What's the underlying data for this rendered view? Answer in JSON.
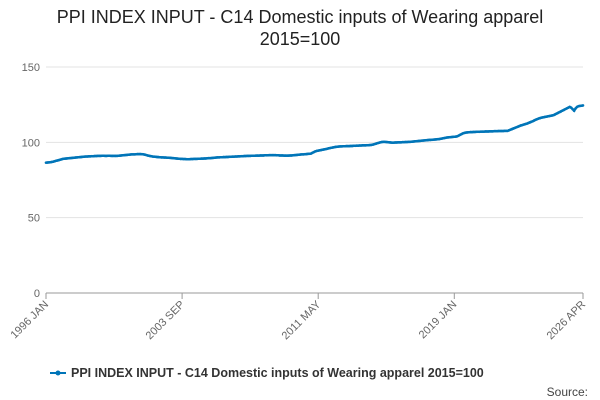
{
  "chart_data": {
    "type": "line",
    "title": "PPI INDEX INPUT - C14 Domestic inputs of Wearing apparel 2015=100",
    "source_label": "Source:",
    "ylim": [
      0,
      150
    ],
    "yticks": [
      0,
      50,
      100,
      150
    ],
    "grid": true,
    "x": [
      "1996 JAN",
      "1996 FEB",
      "1996 MAR",
      "1996 APR",
      "1996 MAY",
      "1996 JUN",
      "1996 JUL",
      "1996 AUG",
      "1996 SEP",
      "1996 OCT",
      "1996 NOV",
      "1996 DEC",
      "1997 JAN",
      "1997 FEB",
      "1997 MAR",
      "1997 APR",
      "1997 MAY",
      "1997 JUN",
      "1997 JUL",
      "1997 AUG",
      "1997 SEP",
      "1997 OCT",
      "1997 NOV",
      "1997 DEC",
      "1998 JAN",
      "1998 FEB",
      "1998 MAR",
      "1998 APR",
      "1998 MAY",
      "1998 JUN",
      "1998 JUL",
      "1998 AUG",
      "1998 SEP",
      "1998 OCT",
      "1998 NOV",
      "1998 DEC",
      "1999 JAN",
      "1999 FEB",
      "1999 MAR",
      "1999 APR",
      "1999 MAY",
      "1999 JUN",
      "1999 JUL",
      "1999 AUG",
      "1999 SEP",
      "1999 OCT",
      "1999 NOV",
      "1999 DEC",
      "2000 JAN",
      "2000 FEB",
      "2000 MAR",
      "2000 APR",
      "2000 MAY",
      "2000 JUN",
      "2000 JUL",
      "2000 AUG",
      "2000 SEP",
      "2000 OCT",
      "2000 NOV",
      "2000 DEC",
      "2001 JAN",
      "2001 FEB",
      "2001 MAR",
      "2001 APR",
      "2001 MAY",
      "2001 JUN",
      "2001 JUL",
      "2001 AUG",
      "2001 SEP",
      "2001 OCT",
      "2001 NOV",
      "2001 DEC",
      "2002 JAN",
      "2002 FEB",
      "2002 MAR",
      "2002 APR",
      "2002 MAY",
      "2002 JUN",
      "2002 JUL",
      "2002 AUG",
      "2002 SEP",
      "2002 OCT",
      "2002 NOV",
      "2002 DEC",
      "2003 JAN",
      "2003 FEB",
      "2003 MAR",
      "2003 APR",
      "2003 MAY",
      "2003 JUN",
      "2003 JUL",
      "2003 AUG",
      "2003 SEP",
      "2003 OCT",
      "2003 NOV",
      "2003 DEC",
      "2004 JAN",
      "2004 FEB",
      "2004 MAR",
      "2004 APR",
      "2004 MAY",
      "2004 JUN",
      "2004 JUL",
      "2004 AUG",
      "2004 SEP",
      "2004 OCT",
      "2004 NOV",
      "2004 DEC",
      "2005 JAN",
      "2005 FEB",
      "2005 MAR",
      "2005 APR",
      "2005 MAY",
      "2005 JUN",
      "2005 JUL",
      "2005 AUG",
      "2005 SEP",
      "2005 OCT",
      "2005 NOV",
      "2005 DEC",
      "2006 JAN",
      "2006 FEB",
      "2006 MAR",
      "2006 APR",
      "2006 MAY",
      "2006 JUN",
      "2006 JUL",
      "2006 AUG",
      "2006 SEP",
      "2006 OCT",
      "2006 NOV",
      "2006 DEC",
      "2007 JAN",
      "2007 FEB",
      "2007 MAR",
      "2007 APR",
      "2007 MAY",
      "2007 JUN",
      "2007 JUL",
      "2007 AUG",
      "2007 SEP",
      "2007 OCT",
      "2007 NOV",
      "2007 DEC",
      "2008 JAN",
      "2008 FEB",
      "2008 MAR",
      "2008 APR",
      "2008 MAY",
      "2008 JUN",
      "2008 JUL",
      "2008 AUG",
      "2008 SEP",
      "2008 OCT",
      "2008 NOV",
      "2008 DEC",
      "2009 JAN",
      "2009 FEB",
      "2009 MAR",
      "2009 APR",
      "2009 MAY",
      "2009 JUN",
      "2009 JUL",
      "2009 AUG",
      "2009 SEP",
      "2009 OCT",
      "2009 NOV",
      "2009 DEC",
      "2010 JAN",
      "2010 FEB",
      "2010 MAR",
      "2010 APR",
      "2010 MAY",
      "2010 JUN",
      "2010 JUL",
      "2010 AUG",
      "2010 SEP",
      "2010 OCT",
      "2010 NOV",
      "2010 DEC",
      "2011 JAN",
      "2011 FEB",
      "2011 MAR",
      "2011 APR",
      "2011 MAY",
      "2011 JUN",
      "2011 JUL",
      "2011 AUG",
      "2011 SEP",
      "2011 OCT",
      "2011 NOV",
      "2011 DEC",
      "2012 JAN",
      "2012 FEB",
      "2012 MAR",
      "2012 APR",
      "2012 MAY",
      "2012 JUN",
      "2012 JUL",
      "2012 AUG",
      "2012 SEP",
      "2012 OCT",
      "2012 NOV",
      "2012 DEC",
      "2013 JAN",
      "2013 FEB",
      "2013 MAR",
      "2013 APR",
      "2013 MAY",
      "2013 JUN",
      "2013 JUL",
      "2013 AUG",
      "2013 SEP",
      "2013 OCT",
      "2013 NOV",
      "2013 DEC",
      "2014 JAN",
      "2014 FEB",
      "2014 MAR",
      "2014 APR",
      "2014 MAY",
      "2014 JUN",
      "2014 JUL",
      "2014 AUG",
      "2014 SEP",
      "2014 OCT",
      "2014 NOV",
      "2014 DEC",
      "2015 JAN",
      "2015 FEB",
      "2015 MAR",
      "2015 APR",
      "2015 MAY",
      "2015 JUN",
      "2015 JUL",
      "2015 AUG",
      "2015 SEP",
      "2015 OCT",
      "2015 NOV",
      "2015 DEC",
      "2016 JAN",
      "2016 FEB",
      "2016 MAR",
      "2016 APR",
      "2016 MAY",
      "2016 JUN",
      "2016 JUL",
      "2016 AUG",
      "2016 SEP",
      "2016 OCT",
      "2016 NOV",
      "2016 DEC",
      "2017 JAN",
      "2017 FEB",
      "2017 MAR",
      "2017 APR",
      "2017 MAY",
      "2017 JUN",
      "2017 JUL",
      "2017 AUG",
      "2017 SEP",
      "2017 OCT",
      "2017 NOV",
      "2017 DEC",
      "2018 JAN",
      "2018 FEB",
      "2018 MAR",
      "2018 APR",
      "2018 MAY",
      "2018 JUN",
      "2018 JUL",
      "2018 AUG",
      "2018 SEP",
      "2018 OCT",
      "2018 NOV",
      "2018 DEC",
      "2019 JAN",
      "2019 FEB",
      "2019 MAR",
      "2019 APR",
      "2019 MAY",
      "2019 JUN",
      "2019 JUL",
      "2019 AUG",
      "2019 SEP",
      "2019 OCT",
      "2019 NOV",
      "2019 DEC",
      "2020 JAN",
      "2020 FEB",
      "2020 MAR",
      "2020 APR",
      "2020 MAY",
      "2020 JUN",
      "2020 JUL",
      "2020 AUG",
      "2020 SEP",
      "2020 OCT",
      "2020 NOV",
      "2020 DEC",
      "2021 JAN",
      "2021 FEB",
      "2021 MAR",
      "2021 APR",
      "2021 MAY",
      "2021 JUN",
      "2021 JUL",
      "2021 AUG",
      "2021 SEP",
      "2021 OCT",
      "2021 NOV",
      "2021 DEC",
      "2022 JAN",
      "2022 FEB",
      "2022 MAR",
      "2022 APR",
      "2022 MAY",
      "2022 JUN",
      "2022 JUL",
      "2022 AUG",
      "2022 SEP",
      "2022 OCT",
      "2022 NOV",
      "2022 DEC",
      "2023 JAN",
      "2023 FEB",
      "2023 MAR",
      "2023 APR",
      "2023 MAY",
      "2023 JUN",
      "2023 JUL",
      "2023 AUG",
      "2023 SEP",
      "2023 OCT",
      "2023 NOV",
      "2023 DEC",
      "2024 JAN",
      "2024 FEB",
      "2024 MAR",
      "2024 APR",
      "2024 MAY",
      "2024 JUN",
      "2024 JUL",
      "2024 AUG",
      "2024 SEP",
      "2024 OCT",
      "2024 NOV",
      "2024 DEC",
      "2025 JAN",
      "2025 FEB",
      "2025 MAR",
      "2025 APR",
      "2025 MAY",
      "2025 JUN",
      "2025 JUL",
      "2025 AUG",
      "2025 SEP",
      "2025 OCT",
      "2025 NOV",
      "2025 DEC",
      "2026 JAN",
      "2026 FEB",
      "2026 MAR",
      "2026 APR"
    ],
    "series": [
      {
        "name": "PPI INDEX INPUT - C14 Domestic inputs of Wearing apparel 2015=100",
        "color": "#0075b8",
        "values": [
          86.5,
          86.6,
          86.7,
          86.8,
          87,
          87.2,
          87.5,
          87.8,
          88,
          88.3,
          88.6,
          88.9,
          89.1,
          89.2,
          89.3,
          89.4,
          89.5,
          89.6,
          89.7,
          89.8,
          89.9,
          90,
          90.1,
          90.2,
          90.3,
          90.4,
          90.5,
          90.6,
          90.6,
          90.7,
          90.7,
          90.8,
          90.8,
          90.9,
          90.9,
          91,
          91,
          91,
          91.1,
          91.1,
          91,
          91,
          91.1,
          91.1,
          91,
          91,
          91,
          91,
          91,
          91.1,
          91.2,
          91.3,
          91.4,
          91.5,
          91.6,
          91.7,
          91.8,
          91.9,
          92,
          92,
          92,
          92.1,
          92.2,
          92.2,
          92.2,
          92.1,
          92,
          91.8,
          91.5,
          91.2,
          91,
          90.8,
          90.6,
          90.5,
          90.4,
          90.3,
          90.2,
          90.1,
          90,
          90,
          89.9,
          89.9,
          89.8,
          89.8,
          89.7,
          89.6,
          89.5,
          89.4,
          89.3,
          89.2,
          89.1,
          89,
          89,
          88.9,
          88.9,
          88.8,
          88.8,
          88.8,
          88.9,
          88.9,
          89,
          89,
          89,
          89.1,
          89.1,
          89.2,
          89.2,
          89.3,
          89.3,
          89.4,
          89.5,
          89.5,
          89.6,
          89.7,
          89.8,
          89.9,
          90,
          90,
          90.1,
          90.1,
          90.2,
          90.2,
          90.3,
          90.3,
          90.4,
          90.4,
          90.5,
          90.5,
          90.6,
          90.6,
          90.7,
          90.7,
          90.8,
          90.8,
          90.9,
          90.9,
          91,
          91,
          91,
          91.1,
          91.1,
          91.1,
          91.2,
          91.2,
          91.2,
          91.3,
          91.3,
          91.3,
          91.4,
          91.4,
          91.4,
          91.5,
          91.5,
          91.5,
          91.5,
          91.5,
          91.4,
          91.4,
          91.3,
          91.3,
          91.3,
          91.2,
          91.2,
          91.2,
          91.2,
          91.3,
          91.3,
          91.4,
          91.5,
          91.6,
          91.7,
          91.8,
          91.9,
          92,
          92,
          92.1,
          92.2,
          92.3,
          92.4,
          92.5,
          93,
          93.5,
          94,
          94.3,
          94.5,
          94.7,
          94.9,
          95.1,
          95.3,
          95.5,
          95.7,
          96,
          96.2,
          96.4,
          96.6,
          96.8,
          97,
          97.1,
          97.2,
          97.3,
          97.3,
          97.4,
          97.4,
          97.5,
          97.5,
          97.5,
          97.6,
          97.6,
          97.7,
          97.7,
          97.8,
          97.8,
          97.9,
          97.9,
          98,
          98,
          98,
          98.1,
          98.1,
          98.2,
          98.3,
          98.5,
          98.8,
          99.1,
          99.4,
          99.7,
          100,
          100.2,
          100.3,
          100.3,
          100.2,
          100.1,
          100,
          99.9,
          99.8,
          99.8,
          99.9,
          99.9,
          100,
          100,
          100,
          100.1,
          100.1,
          100.2,
          100.2,
          100.3,
          100.3,
          100.4,
          100.5,
          100.6,
          100.7,
          100.8,
          100.9,
          101,
          101.1,
          101.2,
          101.3,
          101.4,
          101.5,
          101.6,
          101.6,
          101.7,
          101.8,
          101.9,
          102,
          102.1,
          102.2,
          102.4,
          102.6,
          102.8,
          103,
          103.2,
          103.3,
          103.4,
          103.5,
          103.6,
          103.7,
          103.8,
          104,
          104.5,
          105,
          105.5,
          106,
          106.3,
          106.5,
          106.6,
          106.7,
          106.8,
          106.8,
          106.9,
          106.9,
          107,
          107,
          107,
          107.1,
          107.1,
          107.1,
          107.2,
          107.2,
          107.2,
          107.3,
          107.3,
          107.3,
          107.4,
          107.4,
          107.4,
          107.5,
          107.5,
          107.5,
          107.5,
          107.6,
          107.6,
          107.6,
          108,
          108.4,
          108.8,
          109.2,
          109.6,
          110,
          110.4,
          110.8,
          111.2,
          111.5,
          111.8,
          112.1,
          112.4,
          112.8,
          113.2,
          113.6,
          114,
          114.5,
          115,
          115.4,
          115.8,
          116.1,
          116.4,
          116.6,
          116.8,
          117,
          117.2,
          117.4,
          117.6,
          117.8,
          118,
          118.5,
          119,
          119.5,
          120,
          120.5,
          121,
          121.5,
          122,
          122.5,
          123,
          123.5,
          123,
          122,
          121,
          122.5,
          123.5,
          124,
          124.2,
          124.3,
          124.5
        ]
      }
    ]
  }
}
